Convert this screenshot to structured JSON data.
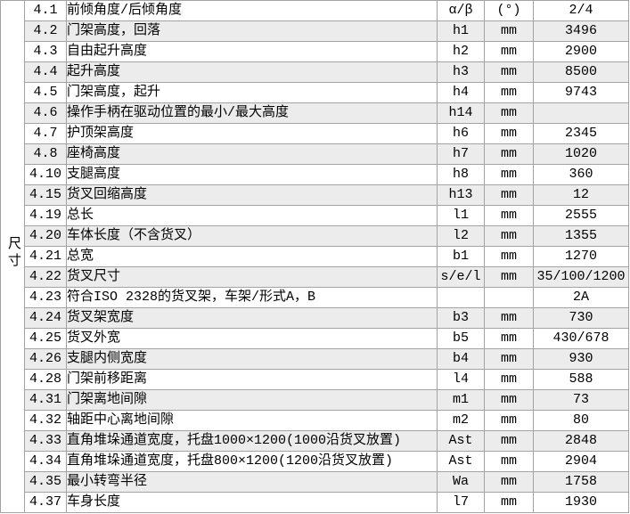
{
  "colors": {
    "row_alt": "#ececec",
    "border": "#a3a3a3",
    "text": "#000000",
    "bg": "#ffffff"
  },
  "table": {
    "side_label": "尺寸",
    "rows": [
      {
        "no": "4.1",
        "desc": "前倾角度/后倾角度",
        "symbol": "α/β",
        "unit": "(°)",
        "value": "2/4"
      },
      {
        "no": "4.2",
        "desc": "门架高度，回落",
        "symbol": "h1",
        "unit": "mm",
        "value": "3496"
      },
      {
        "no": "4.3",
        "desc": "自由起升高度",
        "symbol": "h2",
        "unit": "mm",
        "value": "2900"
      },
      {
        "no": "4.4",
        "desc": "起升高度",
        "symbol": "h3",
        "unit": "mm",
        "value": "8500"
      },
      {
        "no": "4.5",
        "desc": "门架高度，起升",
        "symbol": "h4",
        "unit": "mm",
        "value": "9743"
      },
      {
        "no": "4.6",
        "desc": "操作手柄在驱动位置的最小/最大高度",
        "symbol": "h14",
        "unit": "mm",
        "value": ""
      },
      {
        "no": "4.7",
        "desc": "护顶架高度",
        "symbol": "h6",
        "unit": "mm",
        "value": "2345"
      },
      {
        "no": "4.8",
        "desc": "座椅高度",
        "symbol": "h7",
        "unit": "mm",
        "value": "1020"
      },
      {
        "no": "4.10",
        "desc": "支腿高度",
        "symbol": "h8",
        "unit": "mm",
        "value": "360"
      },
      {
        "no": "4.15",
        "desc": "货叉回缩高度",
        "symbol": "h13",
        "unit": "mm",
        "value": "12"
      },
      {
        "no": "4.19",
        "desc": "总长",
        "symbol": "l1",
        "unit": "mm",
        "value": "2555"
      },
      {
        "no": "4.20",
        "desc": "车体长度（不含货叉）",
        "symbol": "l2",
        "unit": "mm",
        "value": "1355"
      },
      {
        "no": "4.21",
        "desc": "总宽",
        "symbol": "b1",
        "unit": "mm",
        "value": "1270"
      },
      {
        "no": "4.22",
        "desc": "货叉尺寸",
        "symbol": "s/e/l",
        "unit": "mm",
        "value": "35/100/1200"
      },
      {
        "no": "4.23",
        "desc": "符合ISO 2328的货叉架，车架/形式A，B",
        "symbol": "",
        "unit": "",
        "value": "2A"
      },
      {
        "no": "4.24",
        "desc": "货叉架宽度",
        "symbol": "b3",
        "unit": "mm",
        "value": "730"
      },
      {
        "no": "4.25",
        "desc": "货叉外宽",
        "symbol": "b5",
        "unit": "mm",
        "value": "430/678"
      },
      {
        "no": "4.26",
        "desc": "支腿内侧宽度",
        "symbol": "b4",
        "unit": "mm",
        "value": "930"
      },
      {
        "no": "4.28",
        "desc": "门架前移距离",
        "symbol": "l4",
        "unit": "mm",
        "value": "588"
      },
      {
        "no": "4.31",
        "desc": "门架离地间隙",
        "symbol": "m1",
        "unit": "mm",
        "value": "73"
      },
      {
        "no": "4.32",
        "desc": "轴距中心离地间隙",
        "symbol": "m2",
        "unit": "mm",
        "value": "80"
      },
      {
        "no": "4.33",
        "desc": "直角堆垛通道宽度，托盘1000×1200(1000沿货叉放置)",
        "symbol": "Ast",
        "unit": "mm",
        "value": "2848"
      },
      {
        "no": "4.34",
        "desc": "直角堆垛通道宽度，托盘800×1200(1200沿货叉放置)",
        "symbol": "Ast",
        "unit": "mm",
        "value": "2904"
      },
      {
        "no": "4.35",
        "desc": "最小转弯半径",
        "symbol": "Wa",
        "unit": "mm",
        "value": "1758"
      },
      {
        "no": "4.37",
        "desc": "车身长度",
        "symbol": "l7",
        "unit": "mm",
        "value": "1930"
      }
    ]
  }
}
